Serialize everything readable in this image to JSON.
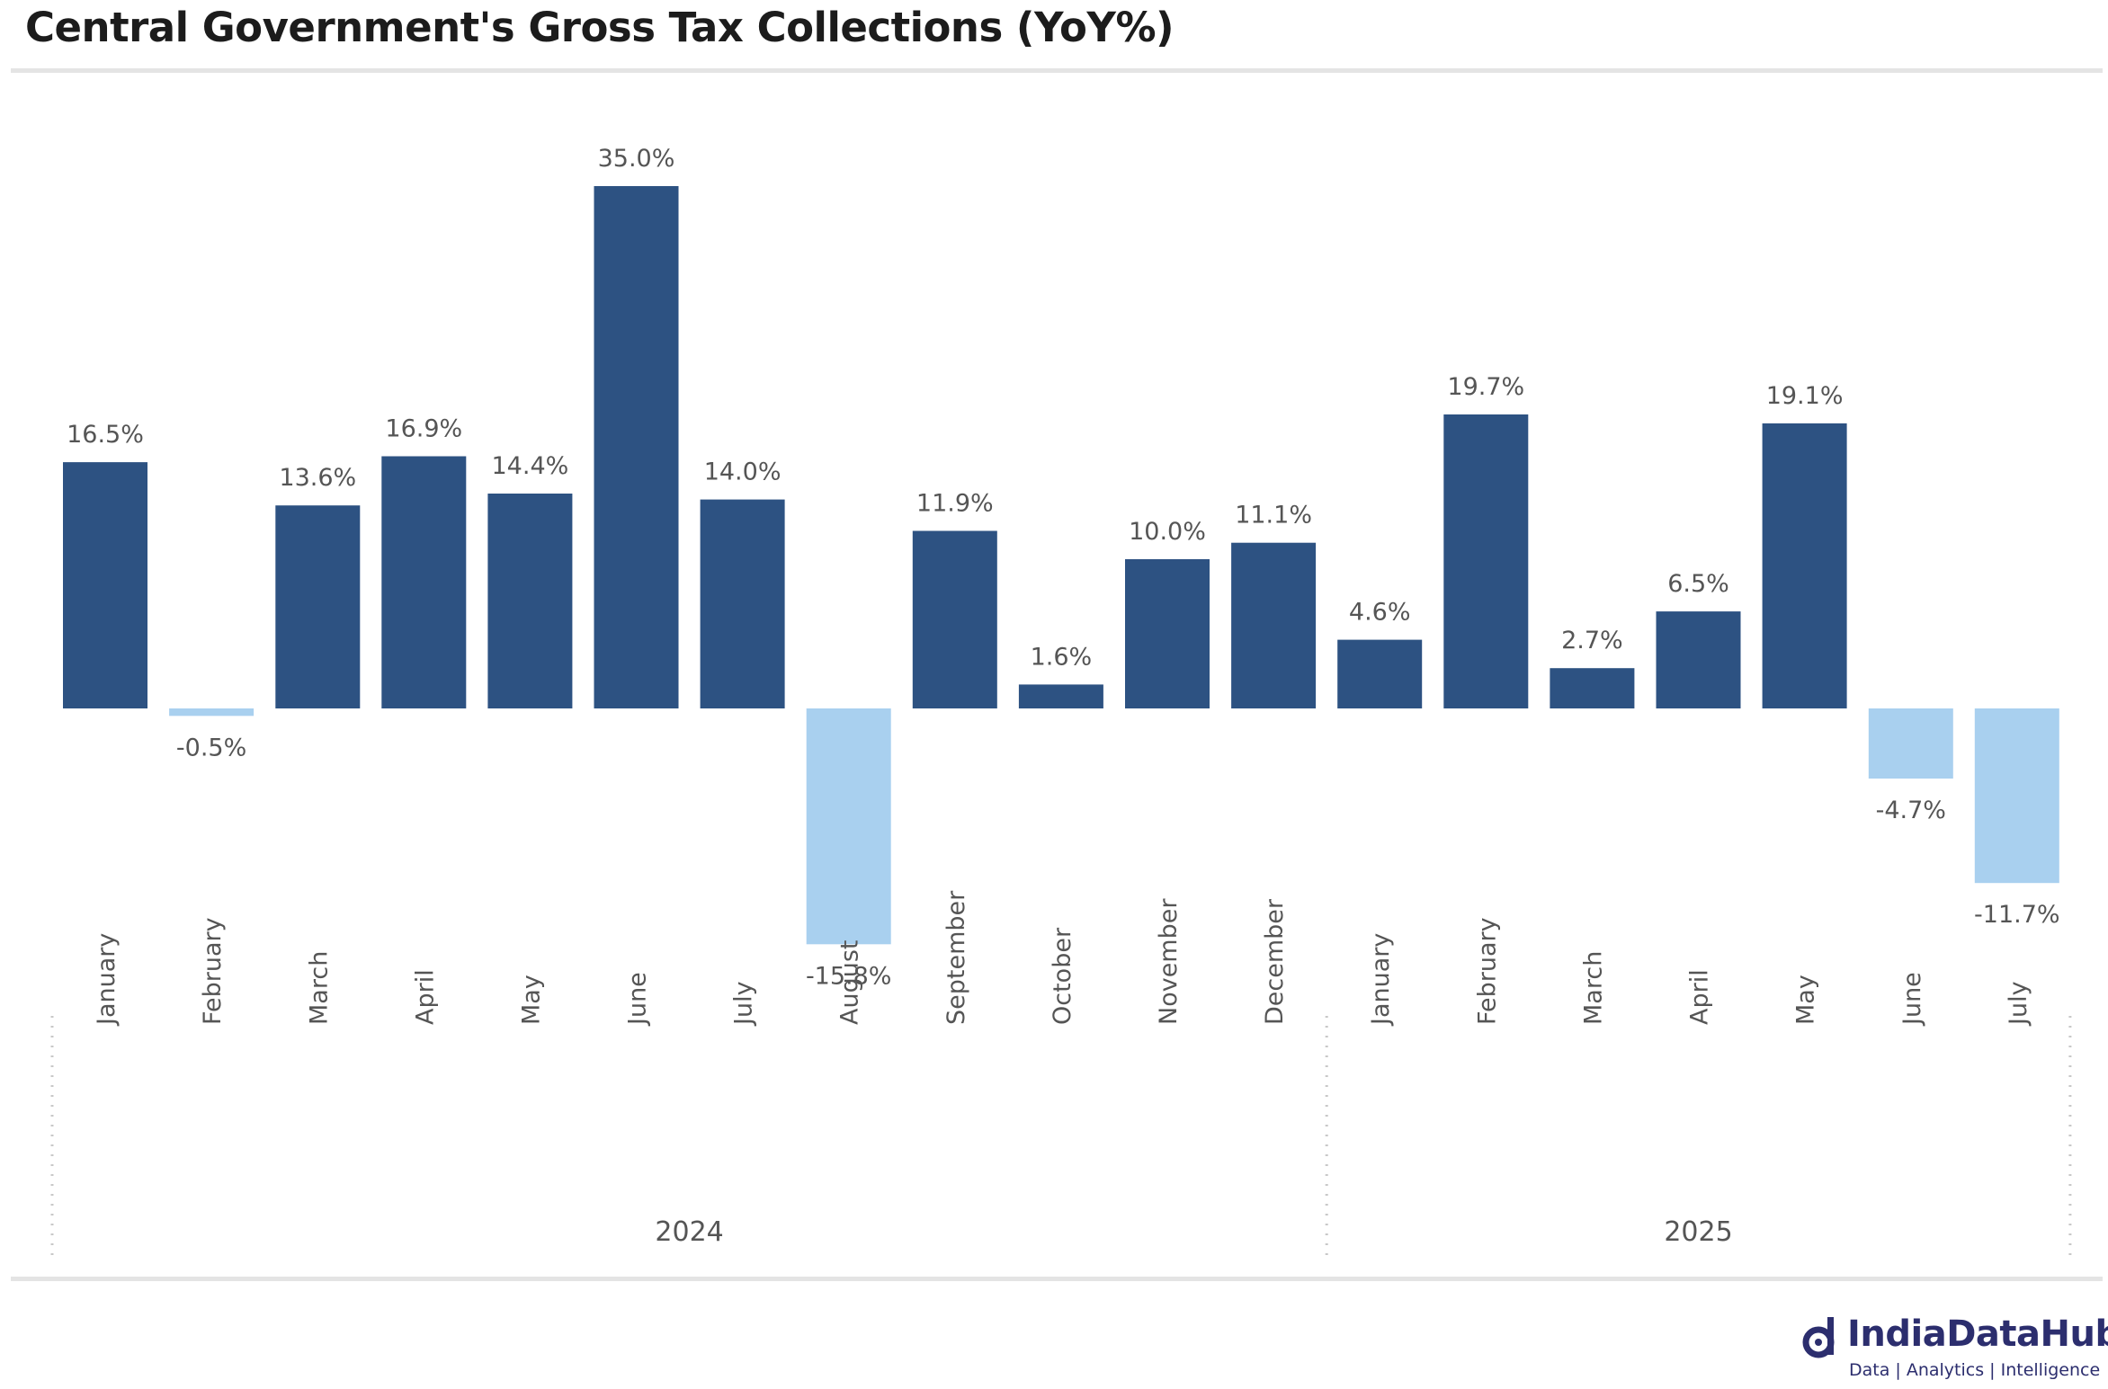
{
  "title": "Central Government's Gross Tax Collections (YoY%)",
  "colors": {
    "positive": "#2d5282",
    "negative": "#a9d0ef",
    "label": "#555555",
    "axis_label": "#555555",
    "rule": "#e4e4e4",
    "brand": "#2c2e6e"
  },
  "chart_data": {
    "type": "bar",
    "title": "Central Government's Gross Tax Collections (YoY%)",
    "unit_suffix": "%",
    "categories": [
      "January",
      "February",
      "March",
      "April",
      "May",
      "June",
      "July",
      "August",
      "September",
      "October",
      "November",
      "December",
      "January",
      "February",
      "March",
      "April",
      "May",
      "June",
      "July"
    ],
    "values": [
      16.5,
      -0.5,
      13.6,
      16.9,
      14.4,
      35.0,
      14.0,
      -15.8,
      11.9,
      1.6,
      10.0,
      11.1,
      4.6,
      19.7,
      2.7,
      6.5,
      19.1,
      -4.7,
      -11.7
    ],
    "value_labels": [
      "16.5%",
      "-0.5%",
      "13.6%",
      "16.9%",
      "14.4%",
      "35.0%",
      "14.0%",
      "-15.8%",
      "11.9%",
      "1.6%",
      "10.0%",
      "11.1%",
      "4.6%",
      "19.7%",
      "2.7%",
      "6.5%",
      "19.1%",
      "-4.7%",
      "-11.7%"
    ],
    "groups": [
      {
        "label": "2024",
        "count": 12
      },
      {
        "label": "2025",
        "count": 7
      }
    ],
    "xlabel": "",
    "ylabel": "",
    "grid": false,
    "legend": "none"
  },
  "branding": {
    "name": "IndiaDataHub",
    "tagline": "Data | Analytics | Intelligence",
    "icon": "indiadatahub-logo-icon"
  }
}
